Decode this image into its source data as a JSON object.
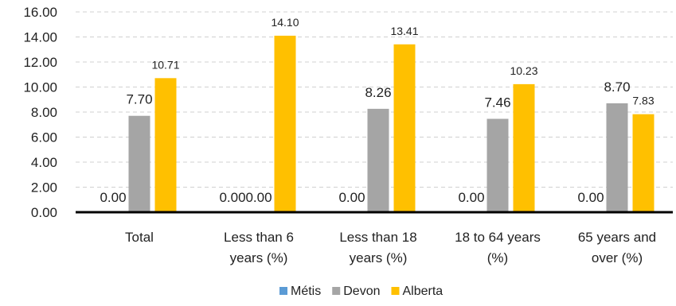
{
  "chart_data": {
    "type": "bar",
    "title": "",
    "xlabel": "",
    "ylabel": "",
    "ylim": [
      0,
      16
    ],
    "y_ticks": [
      "0.00",
      "2.00",
      "4.00",
      "6.00",
      "8.00",
      "10.00",
      "12.00",
      "14.00",
      "16.00"
    ],
    "grid": "horizontal-dashed",
    "legend_position": "bottom",
    "categories": [
      [
        "Total"
      ],
      [
        "Less than 6",
        "years (%)"
      ],
      [
        "Less than 18",
        "years (%)"
      ],
      [
        "18 to 64 years",
        "(%)"
      ],
      [
        "65 years and",
        "over (%)"
      ]
    ],
    "series": [
      {
        "name": "Métis",
        "color": "#5b9bd5",
        "values": [
          0,
          0,
          0,
          0,
          0
        ],
        "labels": [
          "0.00",
          "0.00",
          "0.00",
          "0.00",
          "0.00"
        ]
      },
      {
        "name": "Devon",
        "color": "#a5a5a5",
        "values": [
          7.7,
          0,
          8.26,
          7.46,
          8.7
        ],
        "labels": [
          "7.70",
          "0.00",
          "8.26",
          "7.46",
          "8.70"
        ]
      },
      {
        "name": "Alberta",
        "color": "#ffc000",
        "values": [
          10.71,
          14.1,
          13.41,
          10.23,
          7.83
        ],
        "labels": [
          "10.71",
          "14.10",
          "13.41",
          "10.23",
          "7.83"
        ]
      }
    ]
  }
}
